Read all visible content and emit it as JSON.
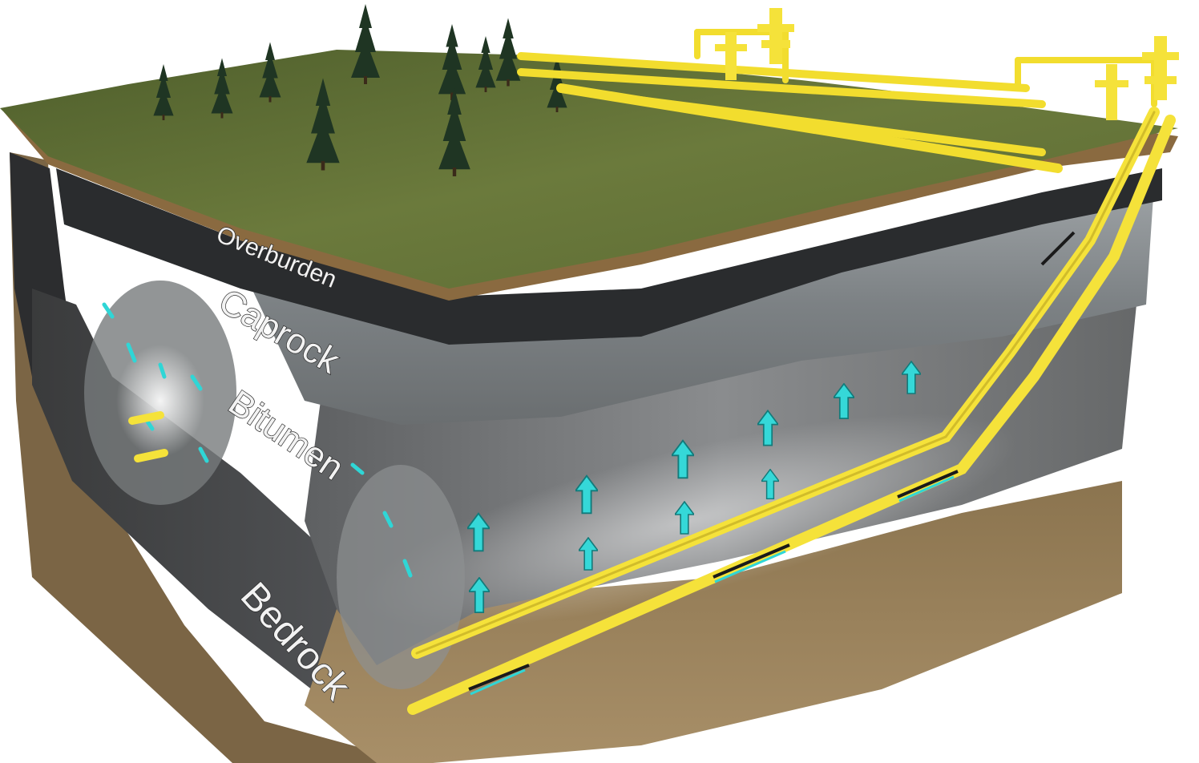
{
  "labels": {
    "overburden": "Overburden",
    "caprock": "Caprock",
    "bitumen": "Bitumen",
    "bedrock": "Bedrock"
  },
  "colors": {
    "surface": "#5a6b34",
    "soil_edge": "#8a6a40",
    "overburden": "#2a2c2e",
    "caprock": "#8d9194",
    "bitumen": "#6c6e70",
    "bedrock": "#9a8360",
    "pipe": "#f5e23a",
    "steam": "#2fd6d6"
  },
  "icons": {
    "trees": "conifer-tree-icon",
    "wellheads": "wellhead-icon",
    "steam_arrows": "up-arrow-icon"
  }
}
